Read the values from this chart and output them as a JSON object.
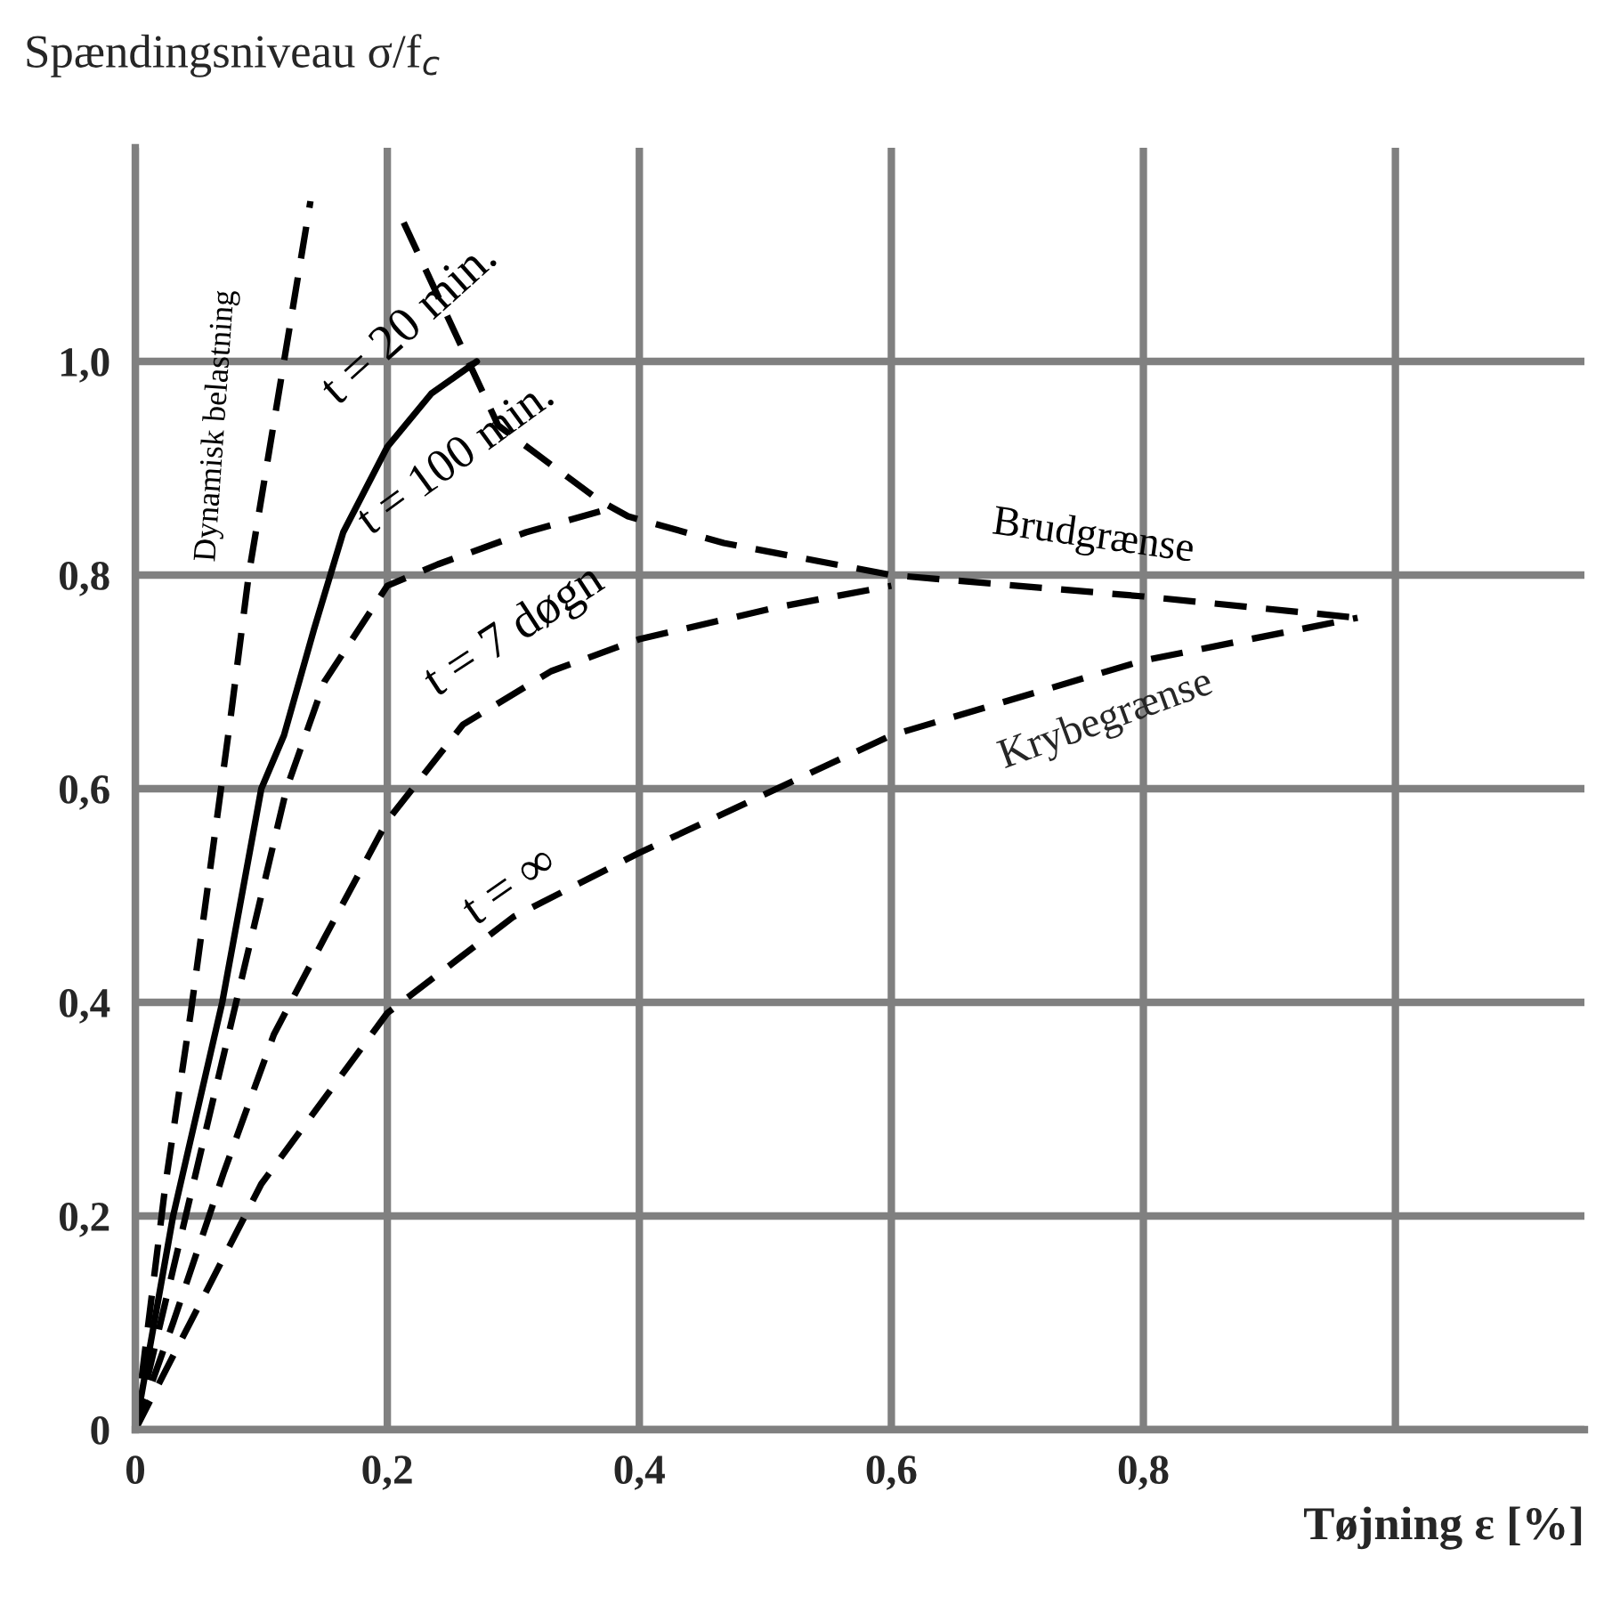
{
  "chart_data": {
    "type": "line",
    "xlabel": "Tøjning ε [%]",
    "ylabel": "Spændingsniveau σ/f$_{c}$",
    "xlim": [
      0,
      1.15
    ],
    "ylim": [
      0,
      1.2
    ],
    "xticks": [
      {
        "value": 0,
        "label": "0"
      },
      {
        "value": 0.2,
        "label": "0,2"
      },
      {
        "value": 0.4,
        "label": "0,4"
      },
      {
        "value": 0.6,
        "label": "0,6"
      },
      {
        "value": 0.8,
        "label": "0,8"
      },
      {
        "value": 1.0,
        "label": null
      }
    ],
    "yticks": [
      {
        "value": 0,
        "label": "0"
      },
      {
        "value": 0.2,
        "label": "0,2"
      },
      {
        "value": 0.4,
        "label": "0,4"
      },
      {
        "value": 0.6,
        "label": "0,6"
      },
      {
        "value": 0.8,
        "label": "0,8"
      },
      {
        "value": 1.0,
        "label": "1,0"
      }
    ],
    "grid": true,
    "legend": false,
    "marker": "none",
    "series": [
      {
        "name": "Dynamisk belastning",
        "color": "#000000",
        "line_style": "dashed",
        "x": [
          0,
          0.024,
          0.044,
          0.076,
          0.09,
          0.118,
          0.139
        ],
        "values": [
          0,
          0.23,
          0.39,
          0.67,
          0.8,
          1.0,
          1.15
        ]
      },
      {
        "name": "t = 20 min.",
        "color": "#000000",
        "line_style": "solid",
        "x": [
          0,
          0.03,
          0.069,
          0.1,
          0.118,
          0.142,
          0.165,
          0.2,
          0.235,
          0.271
        ],
        "values": [
          0,
          0.2,
          0.4,
          0.6,
          0.65,
          0.75,
          0.84,
          0.92,
          0.97,
          1.0
        ]
      },
      {
        "name": "t = 100 min.",
        "color": "#000000",
        "line_style": "dashed",
        "x": [
          0,
          0.03,
          0.06,
          0.09,
          0.12,
          0.15,
          0.2,
          0.24,
          0.31,
          0.37
        ],
        "values": [
          0,
          0.15,
          0.3,
          0.45,
          0.6,
          0.7,
          0.79,
          0.81,
          0.84,
          0.86
        ]
      },
      {
        "name": "t = 7 døgn",
        "color": "#000000",
        "line_style": "dashed",
        "x": [
          0,
          0.03,
          0.07,
          0.11,
          0.15,
          0.2,
          0.26,
          0.33,
          0.4,
          0.51,
          0.6
        ],
        "values": [
          0,
          0.1,
          0.24,
          0.37,
          0.46,
          0.57,
          0.66,
          0.71,
          0.74,
          0.77,
          0.79
        ]
      },
      {
        "name": "t = ∞",
        "color": "#000000",
        "line_style": "dashed",
        "x": [
          0,
          0.087,
          0.1,
          0.2,
          0.3,
          0.4,
          0.6,
          0.8,
          0.97
        ],
        "values": [
          0,
          0.2,
          0.23,
          0.39,
          0.48,
          0.54,
          0.65,
          0.72,
          0.76
        ]
      },
      {
        "name": "Brudgrænse",
        "color": "#000000",
        "line_style": "dashed",
        "x": [
          0.213,
          0.288,
          0.368,
          0.391,
          0.467,
          0.6,
          0.8,
          0.97
        ],
        "values": [
          1.13,
          0.94,
          0.87,
          0.855,
          0.83,
          0.8,
          0.78,
          0.76
        ]
      }
    ],
    "annotations": [
      "Krybegrænse"
    ]
  }
}
